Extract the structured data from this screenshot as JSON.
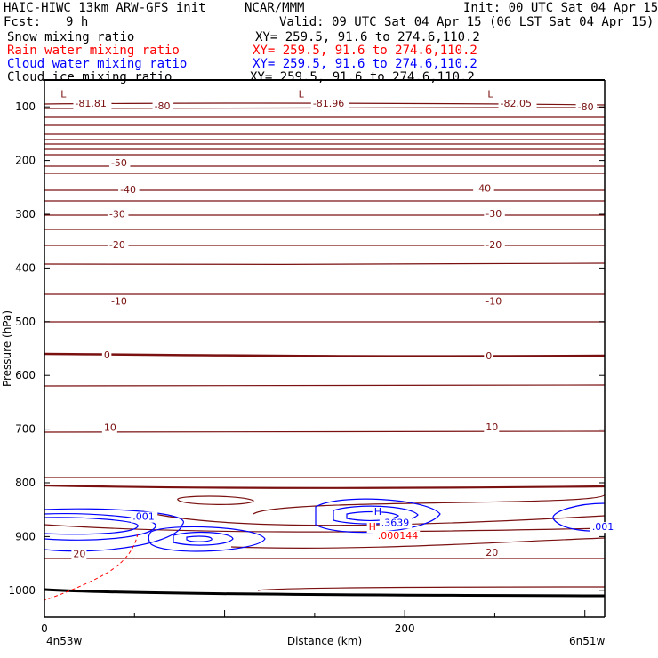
{
  "header": {
    "model": "HAIC-HIWC 13km ARW-GFS init",
    "org": "NCAR/MMM",
    "init": "Init: 00 UTC Sat 04 Apr 15",
    "fcst_label": "Fcst:",
    "fcst_value": "9 h",
    "valid": "Valid: 09 UTC Sat 04 Apr 15 (06 LST Sat 04 Apr 15)"
  },
  "fields": [
    {
      "name": "Snow mixing ratio",
      "xy": "XY= 259.5, 91.6 to 274.6,110.2",
      "color": "#000000"
    },
    {
      "name": "Rain water mixing ratio",
      "xy": "XY= 259.5, 91.6 to 274.6,110.2",
      "color": "#ff0000"
    },
    {
      "name": "Cloud water mixing ratio",
      "xy": "XY= 259.5, 91.6 to 274.6,110.2",
      "color": "#0000ff"
    },
    {
      "name": "Cloud ice mixing ratio",
      "xy": "XY= 259.5, 91.6 to 274.6,110.2",
      "color": "#000000"
    }
  ],
  "chart_data": {
    "type": "contour cross-section",
    "xlabel": "Distance (km)",
    "ylabel": "Pressure (hPa)",
    "xlim": [
      0,
      311
    ],
    "ylim": [
      1050,
      50
    ],
    "xticks": [
      0,
      200
    ],
    "yticks": [
      100,
      200,
      300,
      400,
      500,
      600,
      700,
      800,
      900,
      1000
    ],
    "x_endpoints": {
      "left": "4n53w",
      "right": "6n51w"
    },
    "temperature_contours": [
      {
        "label": "-81.81",
        "x": 17,
        "p": 100
      },
      {
        "label": "-80",
        "x": 61,
        "p": 105
      },
      {
        "label": "-81.96",
        "x": 149,
        "p": 100
      },
      {
        "label": "-82.05",
        "x": 253,
        "p": 100
      },
      {
        "label": "-80",
        "x": 296,
        "p": 106
      },
      {
        "label": "-50",
        "x": 37,
        "p": 211
      },
      {
        "label": "-40",
        "x": 42,
        "p": 260
      },
      {
        "label": "-40",
        "x": 239,
        "p": 258
      },
      {
        "label": "-30",
        "x": 36,
        "p": 306
      },
      {
        "label": "-30",
        "x": 245,
        "p": 305
      },
      {
        "label": "-20",
        "x": 36,
        "p": 363
      },
      {
        "label": "-20",
        "x": 245,
        "p": 363
      },
      {
        "label": "-10",
        "x": 37,
        "p": 468
      },
      {
        "label": "-10",
        "x": 245,
        "p": 468
      },
      {
        "label": "0",
        "x": 33,
        "p": 568
      },
      {
        "label": "0",
        "x": 245,
        "p": 570
      },
      {
        "label": "10",
        "x": 33,
        "p": 703
      },
      {
        "label": "10",
        "x": 245,
        "p": 702
      },
      {
        "label": "20",
        "x": 16,
        "p": 938
      },
      {
        "label": "20",
        "x": 245,
        "p": 936
      }
    ],
    "lows": [
      {
        "label": "L",
        "x": 9,
        "p": 82
      },
      {
        "label": "L",
        "x": 141,
        "p": 82
      },
      {
        "label": "L",
        "x": 246,
        "p": 82
      }
    ],
    "cloud_water_labels": [
      {
        "label": ".001",
        "x": 49,
        "p": 869
      },
      {
        "label": "H",
        "x": 183,
        "p": 860
      },
      {
        "label": ".3639",
        "x": 187,
        "p": 880
      },
      {
        "label": ".001",
        "x": 304,
        "p": 888
      }
    ],
    "rain_water_labels": [
      {
        "label": "H",
        "x": 180,
        "p": 888
      },
      {
        "label": ".000144",
        "x": 185,
        "p": 904
      }
    ]
  }
}
